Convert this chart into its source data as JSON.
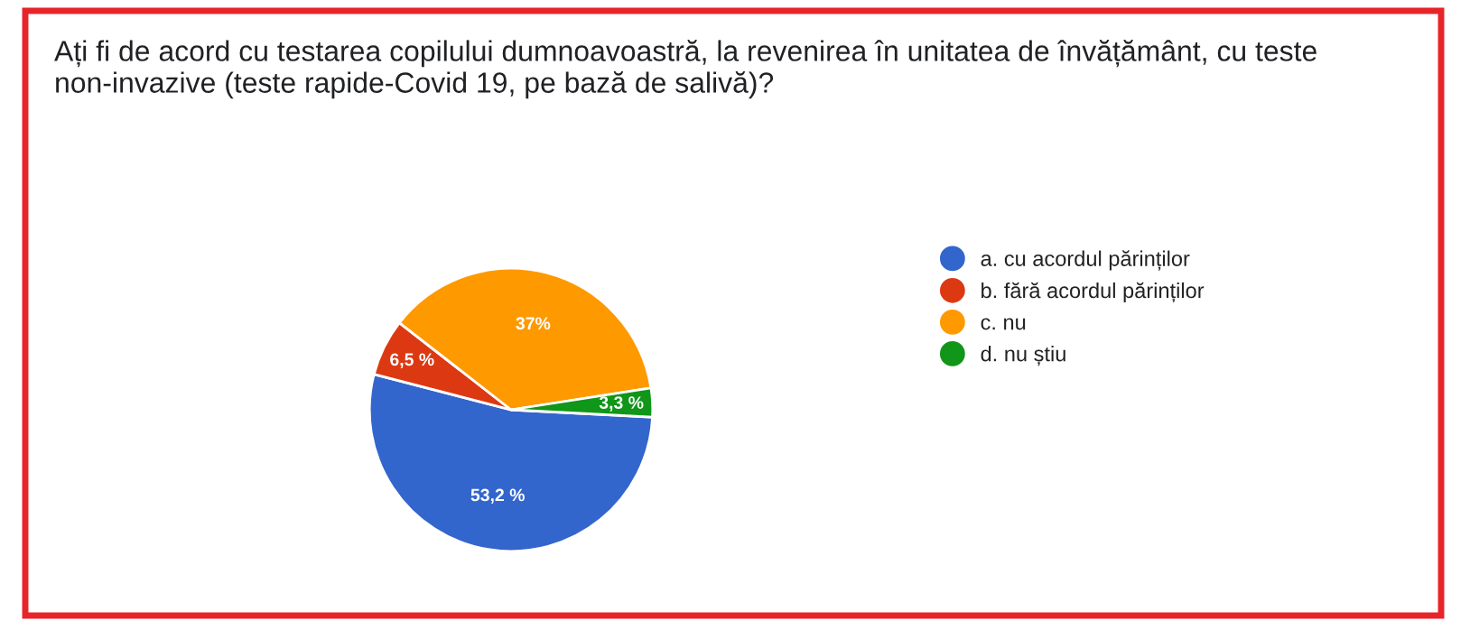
{
  "chart_data": {
    "type": "pie",
    "title": "Ați fi de acord cu testarea copilului dumnoavoastră, la revenirea în unitatea de învățământ, cu teste non-invazive (teste rapide-Covid 19, pe bază de salivă)?",
    "categories": [
      "a. cu acordul părinților",
      "b. fără acordul părinților",
      "c. nu",
      "d. nu știu"
    ],
    "values": [
      53.2,
      6.5,
      37,
      3.3
    ],
    "value_labels": [
      "53,2 %",
      "6,5 %",
      "37%",
      "3,3 %"
    ],
    "colors": [
      "#3366cc",
      "#dc3912",
      "#ff9900",
      "#109618"
    ],
    "legend": "right"
  }
}
